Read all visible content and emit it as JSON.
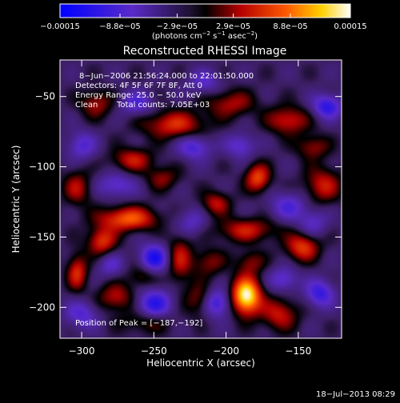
{
  "chart_data": {
    "type": "heatmap",
    "title": "Reconstructed RHESSI Image",
    "xlabel": "Heliocentric X (arcsec)",
    "ylabel": "Heliocentric Y (arcsec)",
    "xlim": [
      -315,
      -120
    ],
    "ylim": [
      -222,
      -24
    ],
    "x_ticks": [
      -300,
      -250,
      -200,
      -150
    ],
    "x_tick_labels": [
      "−300",
      "−250",
      "−200",
      "−150"
    ],
    "y_ticks": [
      -50,
      -100,
      -150,
      -200
    ],
    "y_tick_labels": [
      "−50",
      "−100",
      "−150",
      "−200"
    ],
    "colorbar": {
      "range": [
        -0.00015,
        0.00015
      ],
      "tick_values": [
        -0.00015,
        -8.8e-05,
        -2.9e-05,
        2.9e-05,
        8.8e-05,
        0.00015
      ],
      "tick_labels": [
        "−0.00015",
        "−8.8e−05",
        "−2.9e−05",
        "2.9e−05",
        "8.8e−05",
        "0.00015"
      ],
      "units_prefix": "(photons cm",
      "units_sup1": "−2",
      "units_mid1": " s",
      "units_sup2": "−1",
      "units_mid2": " asec",
      "units_sup3": "−2",
      "units_suffix": ")"
    },
    "annotations": {
      "time_range": "8−Jun−2006 21:56:24.000 to 22:01:50.000",
      "detectors": "Detectors: 4F 5F 6F 7F 8F, Att 0",
      "energy_range": "Energy Range: 25.0 − 50.0 keV",
      "method": "Clean",
      "total_counts": "Total counts: 7.05E+03",
      "peak_position": "Position of Peak = [−187,−192]"
    },
    "peak": {
      "x": -187,
      "y": -192
    },
    "blobs": [
      {
        "x": -186,
        "y": -192,
        "sx": 7,
        "sy": 9,
        "v": 0.000175
      },
      {
        "x": -268,
        "y": -137,
        "sx": 14,
        "sy": 6,
        "v": 0.000105
      },
      {
        "x": -286,
        "y": -153,
        "sx": 7,
        "sy": 7,
        "v": 8.5e-05
      },
      {
        "x": -178,
        "y": -108,
        "sx": 6,
        "sy": 7,
        "v": 9.5e-05
      },
      {
        "x": -236,
        "y": -70,
        "sx": 15,
        "sy": 7,
        "v": 8e-05
      },
      {
        "x": -265,
        "y": -95,
        "sx": 10,
        "sy": 6,
        "v": 7e-05
      },
      {
        "x": -157,
        "y": -67,
        "sx": 10,
        "sy": 7,
        "v": 7.5e-05
      },
      {
        "x": -147,
        "y": -157,
        "sx": 8,
        "sy": 7,
        "v": 9e-05
      },
      {
        "x": -186,
        "y": -145,
        "sx": 15,
        "sy": 6,
        "v": 7e-05
      },
      {
        "x": -207,
        "y": -126,
        "sx": 7,
        "sy": 6,
        "v": 6.5e-05
      },
      {
        "x": -133,
        "y": -113,
        "sx": 9,
        "sy": 9,
        "v": 7e-05
      },
      {
        "x": -232,
        "y": -165,
        "sx": 6,
        "sy": 13,
        "v": 6.5e-05
      },
      {
        "x": -218,
        "y": -195,
        "sx": 7,
        "sy": 8,
        "v": 6e-05
      },
      {
        "x": -276,
        "y": -193,
        "sx": 9,
        "sy": 7,
        "v": 6.5e-05
      },
      {
        "x": -163,
        "y": -205,
        "sx": 9,
        "sy": 8,
        "v": 7e-05
      },
      {
        "x": -303,
        "y": -115,
        "sx": 7,
        "sy": 9,
        "v": 6e-05
      },
      {
        "x": -290,
        "y": -55,
        "sx": 8,
        "sy": 7,
        "v": 6e-05
      },
      {
        "x": -303,
        "y": -175,
        "sx": 5,
        "sy": 9,
        "v": 8e-05
      },
      {
        "x": -197,
        "y": -55,
        "sx": 12,
        "sy": 7,
        "v": 6e-05
      },
      {
        "x": -212,
        "y": -168,
        "sx": 8,
        "sy": 7,
        "v": 5e-05
      },
      {
        "x": -244,
        "y": -108,
        "sx": 8,
        "sy": 6,
        "v": 5e-05
      },
      {
        "x": -258,
        "y": -178,
        "sx": 7,
        "sy": 6,
        "v": 4.5e-05
      },
      {
        "x": -255,
        "y": -210,
        "sx": 12,
        "sy": 6,
        "v": 5e-05
      },
      {
        "x": -140,
        "y": -86,
        "sx": 8,
        "sy": 6,
        "v": 5.5e-05
      },
      {
        "x": -183,
        "y": -168,
        "sx": 7,
        "sy": 6,
        "v": 5e-05
      },
      {
        "x": -250,
        "y": -198,
        "sx": 9,
        "sy": 8,
        "v": -9e-05
      },
      {
        "x": -250,
        "y": -165,
        "sx": 7,
        "sy": 7,
        "v": -0.0001
      },
      {
        "x": -207,
        "y": -197,
        "sx": 7,
        "sy": 7,
        "v": -9e-05
      },
      {
        "x": -130,
        "y": -57,
        "sx": 7,
        "sy": 6,
        "v": -9e-05
      },
      {
        "x": -262,
        "y": -55,
        "sx": 8,
        "sy": 6,
        "v": -6e-05
      },
      {
        "x": -222,
        "y": -86,
        "sx": 8,
        "sy": 6,
        "v": -7e-05
      },
      {
        "x": -276,
        "y": -113,
        "sx": 9,
        "sy": 6,
        "v": -6e-05
      },
      {
        "x": -157,
        "y": -128,
        "sx": 9,
        "sy": 7,
        "v": -6e-05
      },
      {
        "x": -135,
        "y": -190,
        "sx": 7,
        "sy": 7,
        "v": -8e-05
      },
      {
        "x": -300,
        "y": -205,
        "sx": 8,
        "sy": 7,
        "v": -6e-05
      },
      {
        "x": -190,
        "y": -85,
        "sx": 7,
        "sy": 6,
        "v": -6e-05
      },
      {
        "x": -160,
        "y": -180,
        "sx": 7,
        "sy": 6,
        "v": -6e-05
      },
      {
        "x": -300,
        "y": -85,
        "sx": 7,
        "sy": 7,
        "v": -6e-05
      },
      {
        "x": -225,
        "y": -140,
        "sx": 8,
        "sy": 7,
        "v": -5e-05
      },
      {
        "x": -140,
        "y": -140,
        "sx": 7,
        "sy": 7,
        "v": -5e-05
      },
      {
        "x": -280,
        "y": -170,
        "sx": 6,
        "sy": 6,
        "v": -5e-05
      },
      {
        "x": -215,
        "y": -40,
        "sx": 8,
        "sy": 6,
        "v": -5e-05
      }
    ]
  },
  "footer": {
    "timestamp": "18−Jul−2013 08:29"
  }
}
